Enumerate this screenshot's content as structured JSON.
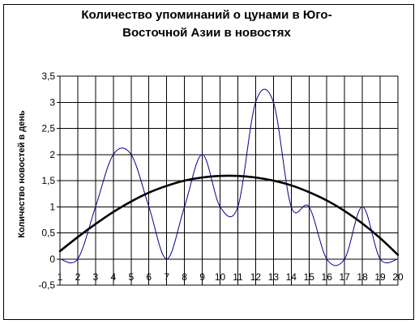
{
  "chart_data": {
    "type": "line",
    "title": [
      "Количество упоминаний о цунами в Юго-",
      "Восточной Азии в новостях"
    ],
    "xlabel": "",
    "ylabel": "Количество новостей в день",
    "x": [
      1,
      2,
      3,
      4,
      5,
      6,
      7,
      8,
      9,
      10,
      11,
      12,
      13,
      14,
      15,
      16,
      17,
      18,
      19,
      20
    ],
    "ylim": [
      -0.5,
      3.5
    ],
    "yticks": [
      -0.5,
      0,
      0.5,
      1,
      1.5,
      2,
      2.5,
      3,
      3.5
    ],
    "ytick_labels": [
      "-0,5",
      "0",
      "0,5",
      "1",
      "1,5",
      "2",
      "2,5",
      "3",
      "3,5"
    ],
    "grid": true,
    "legend": "none",
    "series": [
      {
        "values": [
          0,
          0,
          1,
          2,
          2,
          1,
          0,
          1,
          2,
          1,
          1,
          3,
          3,
          1,
          1,
          0,
          0,
          1,
          0,
          0
        ],
        "color": "#00008b",
        "style": "smooth-thin"
      },
      {
        "values": [
          0.15,
          0.42,
          0.67,
          0.9,
          1.1,
          1.27,
          1.4,
          1.5,
          1.56,
          1.59,
          1.59,
          1.56,
          1.5,
          1.41,
          1.28,
          1.12,
          0.92,
          0.68,
          0.4,
          0.08
        ],
        "color": "#000000",
        "style": "smooth-thick"
      }
    ]
  }
}
